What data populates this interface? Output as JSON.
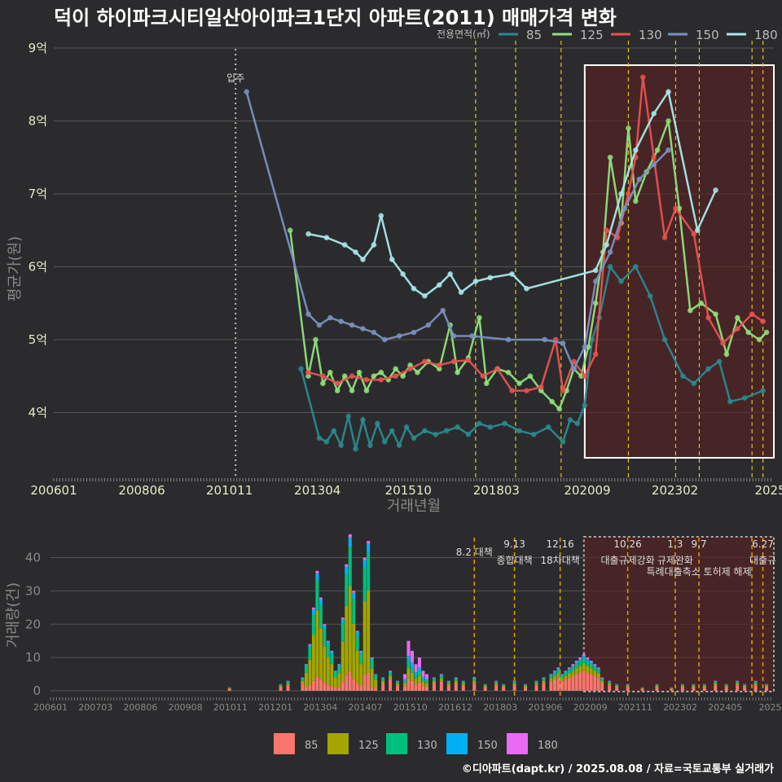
{
  "title": "덕이 하이파크시티일산아이파크1단지 아파트(2011) 매매가격 변화",
  "credit": "©디아파트(dapt.kr) / 2025.08.08 / 자료=국토교통부 실거래가",
  "colors": {
    "bg": "#2b2b2d",
    "s85": "#2a8a8f",
    "s125": "#8ee07a",
    "s130": "#e8524f",
    "s150": "#7a90c0",
    "s180": "#a6e8e8",
    "c85": "#f8766d",
    "c125": "#a3a500",
    "c130": "#00bf7d",
    "c150": "#00b0f6",
    "c180": "#e76bf3"
  },
  "chart_data": [
    {
      "type": "line",
      "title": "덕이 하이파크시티일산아이파크1단지 아파트(2011) 매매가격 변화",
      "xlabel": "거래년월",
      "ylabel": "평균가(원)",
      "legend_title": "전용면적(㎡)",
      "x_ticks": [
        "200601",
        "200806",
        "201011",
        "201304",
        "201510",
        "201803",
        "202009",
        "202302",
        "2025"
      ],
      "y_ticks": [
        "4억",
        "5억",
        "6억",
        "7억",
        "8억",
        "9억"
      ],
      "ylim": [
        3.1,
        9.1
      ],
      "xlim": [
        2006.0,
        2025.8
      ],
      "occupancy_label": "입주",
      "occupancy_x": 2011.0,
      "policy_lines": [
        2017.6,
        2018.7,
        2019.95,
        2021.8,
        2023.1,
        2023.75,
        2025.2,
        2025.5
      ],
      "highlight_range": [
        2020.6,
        2025.8
      ],
      "series": [
        {
          "name": "85",
          "points": [
            [
              2012.8,
              4.6
            ],
            [
              2013.3,
              3.65
            ],
            [
              2013.5,
              3.6
            ],
            [
              2013.7,
              3.75
            ],
            [
              2013.9,
              3.55
            ],
            [
              2014.1,
              3.95
            ],
            [
              2014.3,
              3.5
            ],
            [
              2014.5,
              3.9
            ],
            [
              2014.7,
              3.55
            ],
            [
              2014.9,
              3.85
            ],
            [
              2015.1,
              3.6
            ],
            [
              2015.3,
              3.75
            ],
            [
              2015.5,
              3.55
            ],
            [
              2015.7,
              3.8
            ],
            [
              2015.9,
              3.65
            ],
            [
              2016.2,
              3.75
            ],
            [
              2016.5,
              3.7
            ],
            [
              2016.8,
              3.75
            ],
            [
              2017.1,
              3.8
            ],
            [
              2017.4,
              3.7
            ],
            [
              2017.7,
              3.85
            ],
            [
              2018.0,
              3.8
            ],
            [
              2018.4,
              3.85
            ],
            [
              2018.8,
              3.75
            ],
            [
              2019.2,
              3.7
            ],
            [
              2019.6,
              3.8
            ],
            [
              2020.0,
              3.6
            ],
            [
              2020.2,
              3.9
            ],
            [
              2020.4,
              3.85
            ],
            [
              2020.6,
              4.1
            ],
            [
              2020.8,
              5.0
            ],
            [
              2021.0,
              5.3
            ],
            [
              2021.3,
              6.0
            ],
            [
              2021.6,
              5.8
            ],
            [
              2022.0,
              6.0
            ],
            [
              2022.4,
              5.6
            ],
            [
              2022.8,
              5.0
            ],
            [
              2023.3,
              4.5
            ],
            [
              2023.6,
              4.4
            ],
            [
              2024.0,
              4.6
            ],
            [
              2024.3,
              4.7
            ],
            [
              2024.6,
              4.15
            ],
            [
              2025.0,
              4.2
            ],
            [
              2025.5,
              4.3
            ]
          ]
        },
        {
          "name": "125",
          "points": [
            [
              2012.5,
              6.5
            ],
            [
              2013.0,
              4.5
            ],
            [
              2013.2,
              5.0
            ],
            [
              2013.4,
              4.4
            ],
            [
              2013.6,
              4.55
            ],
            [
              2013.8,
              4.3
            ],
            [
              2014.0,
              4.5
            ],
            [
              2014.2,
              4.3
            ],
            [
              2014.4,
              4.55
            ],
            [
              2014.6,
              4.3
            ],
            [
              2014.8,
              4.5
            ],
            [
              2015.0,
              4.55
            ],
            [
              2015.2,
              4.45
            ],
            [
              2015.4,
              4.6
            ],
            [
              2015.6,
              4.5
            ],
            [
              2015.8,
              4.65
            ],
            [
              2016.0,
              4.55
            ],
            [
              2016.3,
              4.7
            ],
            [
              2016.6,
              4.6
            ],
            [
              2016.9,
              5.2
            ],
            [
              2017.1,
              4.55
            ],
            [
              2017.4,
              4.75
            ],
            [
              2017.7,
              5.3
            ],
            [
              2017.9,
              4.4
            ],
            [
              2018.2,
              4.6
            ],
            [
              2018.5,
              4.55
            ],
            [
              2018.8,
              4.4
            ],
            [
              2019.1,
              4.5
            ],
            [
              2019.4,
              4.3
            ],
            [
              2019.7,
              4.15
            ],
            [
              2019.9,
              4.05
            ],
            [
              2020.1,
              4.3
            ],
            [
              2020.3,
              4.6
            ],
            [
              2020.5,
              4.5
            ],
            [
              2020.7,
              4.9
            ],
            [
              2020.9,
              5.5
            ],
            [
              2021.1,
              6.2
            ],
            [
              2021.3,
              7.5
            ],
            [
              2021.6,
              6.6
            ],
            [
              2021.8,
              7.9
            ],
            [
              2022.0,
              6.9
            ],
            [
              2022.3,
              7.3
            ],
            [
              2022.6,
              7.6
            ],
            [
              2022.9,
              8.0
            ],
            [
              2023.2,
              6.8
            ],
            [
              2023.5,
              5.4
            ],
            [
              2023.8,
              5.5
            ],
            [
              2024.2,
              5.35
            ],
            [
              2024.5,
              4.8
            ],
            [
              2024.8,
              5.3
            ],
            [
              2025.1,
              5.1
            ],
            [
              2025.4,
              5.0
            ],
            [
              2025.6,
              5.1
            ]
          ]
        },
        {
          "name": "130",
          "points": [
            [
              2013.0,
              4.55
            ],
            [
              2013.4,
              4.5
            ],
            [
              2013.8,
              4.4
            ],
            [
              2014.2,
              4.5
            ],
            [
              2014.6,
              4.45
            ],
            [
              2015.0,
              4.45
            ],
            [
              2015.4,
              4.5
            ],
            [
              2015.8,
              4.6
            ],
            [
              2016.2,
              4.7
            ],
            [
              2016.6,
              4.65
            ],
            [
              2017.0,
              4.7
            ],
            [
              2017.4,
              4.72
            ],
            [
              2017.8,
              4.5
            ],
            [
              2018.2,
              4.6
            ],
            [
              2018.6,
              4.3
            ],
            [
              2019.0,
              4.3
            ],
            [
              2019.4,
              4.35
            ],
            [
              2019.8,
              5.0
            ],
            [
              2020.0,
              4.3
            ],
            [
              2020.3,
              4.7
            ],
            [
              2020.6,
              4.5
            ],
            [
              2020.9,
              4.8
            ],
            [
              2021.2,
              6.5
            ],
            [
              2021.5,
              6.4
            ],
            [
              2021.8,
              7.0
            ],
            [
              2022.0,
              7.5
            ],
            [
              2022.2,
              8.6
            ],
            [
              2022.5,
              7.5
            ],
            [
              2022.8,
              6.4
            ],
            [
              2023.1,
              6.8
            ],
            [
              2023.6,
              6.45
            ],
            [
              2024.0,
              5.3
            ],
            [
              2024.4,
              4.95
            ],
            [
              2024.8,
              5.15
            ],
            [
              2025.2,
              5.35
            ],
            [
              2025.5,
              5.25
            ]
          ]
        },
        {
          "name": "150",
          "points": [
            [
              2011.3,
              8.4
            ],
            [
              2013.0,
              5.35
            ],
            [
              2013.3,
              5.2
            ],
            [
              2013.6,
              5.3
            ],
            [
              2013.9,
              5.25
            ],
            [
              2014.2,
              5.2
            ],
            [
              2014.5,
              5.15
            ],
            [
              2014.8,
              5.1
            ],
            [
              2015.1,
              5.0
            ],
            [
              2015.5,
              5.05
            ],
            [
              2015.9,
              5.1
            ],
            [
              2016.3,
              5.2
            ],
            [
              2016.7,
              5.4
            ],
            [
              2017.0,
              5.05
            ],
            [
              2017.5,
              5.05
            ],
            [
              2018.5,
              5.0
            ],
            [
              2019.5,
              5.0
            ],
            [
              2020.0,
              4.95
            ],
            [
              2020.3,
              4.6
            ],
            [
              2020.6,
              4.9
            ],
            [
              2020.9,
              5.8
            ],
            [
              2021.3,
              6.2
            ],
            [
              2021.7,
              6.8
            ],
            [
              2022.1,
              7.2
            ],
            [
              2022.5,
              7.4
            ],
            [
              2022.9,
              7.6
            ]
          ]
        },
        {
          "name": "180",
          "points": [
            [
              2013.0,
              6.45
            ],
            [
              2013.5,
              6.4
            ],
            [
              2014.0,
              6.3
            ],
            [
              2014.3,
              6.2
            ],
            [
              2014.5,
              6.1
            ],
            [
              2014.8,
              6.3
            ],
            [
              2015.0,
              6.7
            ],
            [
              2015.3,
              6.1
            ],
            [
              2015.6,
              5.9
            ],
            [
              2015.9,
              5.7
            ],
            [
              2016.2,
              5.6
            ],
            [
              2016.6,
              5.75
            ],
            [
              2016.9,
              5.9
            ],
            [
              2017.2,
              5.65
            ],
            [
              2017.6,
              5.8
            ],
            [
              2018.0,
              5.85
            ],
            [
              2018.6,
              5.9
            ],
            [
              2019.0,
              5.7
            ],
            [
              2020.9,
              5.95
            ],
            [
              2021.2,
              6.3
            ],
            [
              2021.6,
              7.0
            ],
            [
              2022.0,
              7.6
            ],
            [
              2022.5,
              8.1
            ],
            [
              2022.9,
              8.4
            ],
            [
              2023.7,
              6.5
            ],
            [
              2024.2,
              7.05
            ]
          ]
        }
      ]
    },
    {
      "type": "bar",
      "ylabel": "거래량(건)",
      "y_ticks": [
        "0",
        "10",
        "20",
        "30",
        "40"
      ],
      "ylim": [
        0,
        46
      ],
      "x_ticks": [
        "200601",
        "200703",
        "200806",
        "200908",
        "201011",
        "201201",
        "201304",
        "201407",
        "201510",
        "201612",
        "201803",
        "201906",
        "202009",
        "202111",
        "202302",
        "202405",
        "2025"
      ],
      "legend": [
        "85",
        "125",
        "130",
        "150",
        "180"
      ],
      "annotations": [
        {
          "x": 2017.6,
          "line1": "8.2 대책",
          "line2": ""
        },
        {
          "x": 2018.7,
          "line1": "9.13",
          "line2": "종합대책"
        },
        {
          "x": 2019.95,
          "line1": "12.16",
          "line2": "18차대책"
        },
        {
          "x": 2021.8,
          "line1": "10.26",
          "line2": "대출규제강화"
        },
        {
          "x": 2023.1,
          "line1": "1.3",
          "line2": "규제완화"
        },
        {
          "x": 2023.75,
          "line1": "9.7",
          "line2": "특례대출축소 토허제 해제"
        },
        {
          "x": 2025.5,
          "line1": "6.27",
          "line2": "대출규"
        }
      ],
      "monthly_totals": [
        [
          2010.9,
          1
        ],
        [
          2012.3,
          2
        ],
        [
          2012.5,
          3
        ],
        [
          2012.9,
          4
        ],
        [
          2013.0,
          8
        ],
        [
          2013.1,
          14
        ],
        [
          2013.2,
          25
        ],
        [
          2013.3,
          36
        ],
        [
          2013.4,
          28
        ],
        [
          2013.5,
          20
        ],
        [
          2013.6,
          15
        ],
        [
          2013.7,
          12
        ],
        [
          2013.8,
          6
        ],
        [
          2013.9,
          8
        ],
        [
          2014.0,
          22
        ],
        [
          2014.1,
          38
        ],
        [
          2014.2,
          47
        ],
        [
          2014.3,
          30
        ],
        [
          2014.4,
          18
        ],
        [
          2014.5,
          12
        ],
        [
          2014.6,
          40
        ],
        [
          2014.7,
          45
        ],
        [
          2014.8,
          10
        ],
        [
          2014.9,
          5
        ],
        [
          2015.1,
          4
        ],
        [
          2015.3,
          6
        ],
        [
          2015.5,
          3
        ],
        [
          2015.7,
          5
        ],
        [
          2015.8,
          15
        ],
        [
          2015.9,
          12
        ],
        [
          2016.0,
          8
        ],
        [
          2016.1,
          10
        ],
        [
          2016.2,
          6
        ],
        [
          2016.3,
          5
        ],
        [
          2016.5,
          4
        ],
        [
          2016.7,
          5
        ],
        [
          2016.9,
          3
        ],
        [
          2017.1,
          4
        ],
        [
          2017.3,
          3
        ],
        [
          2017.6,
          4
        ],
        [
          2017.9,
          2
        ],
        [
          2018.2,
          3
        ],
        [
          2018.4,
          2
        ],
        [
          2018.7,
          3
        ],
        [
          2019.0,
          2
        ],
        [
          2019.3,
          3
        ],
        [
          2019.5,
          4
        ],
        [
          2019.7,
          5
        ],
        [
          2019.8,
          6
        ],
        [
          2019.9,
          7
        ],
        [
          2020.0,
          5
        ],
        [
          2020.1,
          6
        ],
        [
          2020.2,
          7
        ],
        [
          2020.3,
          8
        ],
        [
          2020.4,
          9
        ],
        [
          2020.5,
          10
        ],
        [
          2020.6,
          11
        ],
        [
          2020.7,
          10
        ],
        [
          2020.8,
          9
        ],
        [
          2020.9,
          8
        ],
        [
          2021.0,
          7
        ],
        [
          2021.1,
          4
        ],
        [
          2021.3,
          3
        ],
        [
          2021.5,
          2
        ],
        [
          2021.8,
          2
        ],
        [
          2022.2,
          1
        ],
        [
          2022.6,
          2
        ],
        [
          2023.0,
          1
        ],
        [
          2023.3,
          2
        ],
        [
          2023.6,
          2
        ],
        [
          2023.9,
          2
        ],
        [
          2024.2,
          3
        ],
        [
          2024.5,
          2
        ],
        [
          2024.8,
          3
        ],
        [
          2025.0,
          2
        ],
        [
          2025.3,
          3
        ],
        [
          2025.6,
          2
        ]
      ]
    }
  ]
}
